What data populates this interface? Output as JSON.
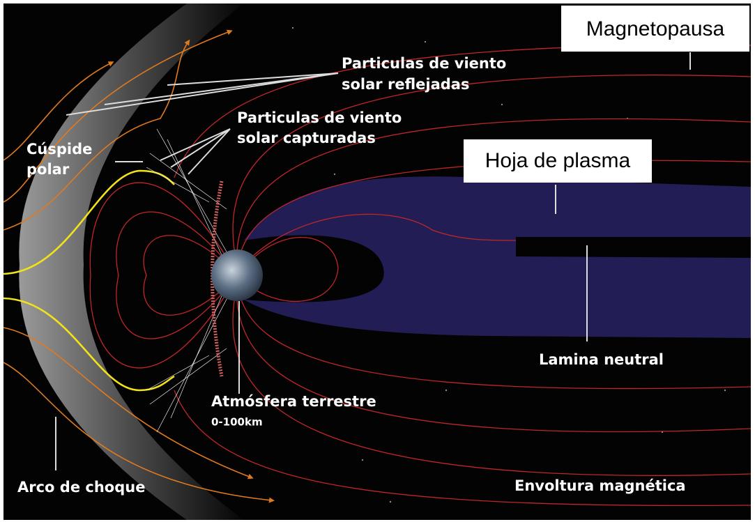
{
  "labels": {
    "magnetopause": "Magnetopausa",
    "reflected_particles": [
      "Particulas de viento",
      "solar reflejadas"
    ],
    "captured_particles": [
      "Particulas de viento",
      "solar capturadas"
    ],
    "polar_cusp": [
      "Cúspide",
      "polar"
    ],
    "plasma_sheet": "Hoja de plasma",
    "neutral_sheet": "Lamina neutral",
    "atmosphere": "Atmósfera terrestre",
    "atmosphere_range": "0-100km",
    "bow_shock": "Arco de choque",
    "magnetosheath": "Envoltura magnética"
  }
}
